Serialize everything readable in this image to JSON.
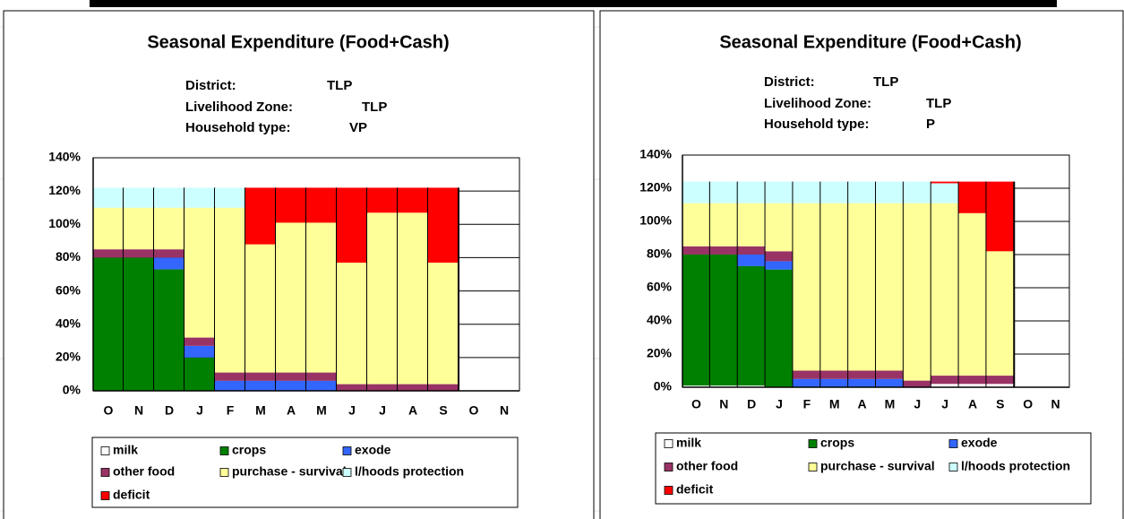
{
  "chart_data": [
    {
      "type": "bar",
      "stacked": true,
      "title": "Seasonal Expenditure (Food+Cash)",
      "info": [
        {
          "label": "District:",
          "value": "TLP"
        },
        {
          "label": "Livelihood Zone:",
          "value": "TLP"
        },
        {
          "label": "Household type:",
          "value": "VP"
        }
      ],
      "categories": [
        "O",
        "N",
        "D",
        "J",
        "F",
        "M",
        "A",
        "M",
        "J",
        "J",
        "A",
        "S",
        "O",
        "N"
      ],
      "ylim": [
        0,
        140
      ],
      "yticks": [
        {
          "value": 0,
          "label": "0%"
        },
        {
          "value": 20,
          "label": "20%"
        },
        {
          "value": 40,
          "label": "40%"
        },
        {
          "value": 60,
          "label": "60%"
        },
        {
          "value": 80,
          "label": "80%"
        },
        {
          "value": 100,
          "label": "100%"
        },
        {
          "value": 120,
          "label": "120%"
        },
        {
          "value": 140,
          "label": "140%"
        }
      ],
      "grid": true,
      "series": [
        {
          "name": "milk",
          "color": "#ffffff",
          "values": [
            0,
            0,
            0,
            0,
            0,
            0,
            0,
            0,
            0,
            0,
            0,
            0,
            null,
            null
          ]
        },
        {
          "name": "crops",
          "color": "#008000",
          "values": [
            80,
            80,
            73,
            20,
            0,
            0,
            0,
            0,
            0,
            0,
            0,
            0,
            null,
            null
          ]
        },
        {
          "name": "exode",
          "color": "#3366ff",
          "values": [
            0,
            0,
            7,
            7,
            6,
            6,
            6,
            6,
            0,
            0,
            0,
            0,
            null,
            null
          ]
        },
        {
          "name": "other food",
          "color": "#993366",
          "values": [
            5,
            5,
            5,
            5,
            5,
            5,
            5,
            5,
            4,
            4,
            4,
            4,
            null,
            null
          ]
        },
        {
          "name": "purchase - survival",
          "color": "#ffff99",
          "values": [
            25,
            25,
            25,
            78,
            99,
            77,
            90,
            90,
            73,
            103,
            103,
            73,
            null,
            null
          ]
        },
        {
          "name": "l/hoods protection",
          "color": "#ccffff",
          "values": [
            12,
            12,
            12,
            12,
            12,
            0,
            0,
            0,
            0,
            0,
            0,
            0,
            null,
            null
          ]
        },
        {
          "name": "deficit",
          "color": "#ff0000",
          "values": [
            0,
            0,
            0,
            0,
            0,
            34,
            21,
            21,
            45,
            15,
            15,
            45,
            null,
            null
          ]
        }
      ]
    },
    {
      "type": "bar",
      "stacked": true,
      "title": "Seasonal Expenditure (Food+Cash)",
      "info": [
        {
          "label": "District:",
          "value": "TLP"
        },
        {
          "label": "Livelihood Zone:",
          "value": "TLP"
        },
        {
          "label": "Household type:",
          "value": "P"
        }
      ],
      "categories": [
        "O",
        "N",
        "D",
        "J",
        "F",
        "M",
        "A",
        "M",
        "J",
        "J",
        "A",
        "S",
        "O",
        "N"
      ],
      "ylim": [
        0,
        140
      ],
      "yticks": [
        {
          "value": 0,
          "label": "0%"
        },
        {
          "value": 20,
          "label": "20%"
        },
        {
          "value": 40,
          "label": "40%"
        },
        {
          "value": 60,
          "label": "60%"
        },
        {
          "value": 80,
          "label": "80%"
        },
        {
          "value": 100,
          "label": "100%"
        },
        {
          "value": 120,
          "label": "120%"
        },
        {
          "value": 140,
          "label": "140%"
        }
      ],
      "grid": true,
      "series": [
        {
          "name": "milk",
          "color": "#ffffff",
          "values": [
            1,
            1,
            1,
            0,
            0,
            0,
            0,
            0,
            0,
            2,
            2,
            2,
            null,
            null
          ]
        },
        {
          "name": "crops",
          "color": "#008000",
          "values": [
            79,
            79,
            72,
            71,
            0,
            0,
            0,
            0,
            0,
            0,
            0,
            0,
            null,
            null
          ]
        },
        {
          "name": "exode",
          "color": "#3366ff",
          "values": [
            0,
            0,
            7,
            5,
            5,
            5,
            5,
            5,
            0,
            0,
            0,
            0,
            null,
            null
          ]
        },
        {
          "name": "other food",
          "color": "#993366",
          "values": [
            5,
            5,
            5,
            6,
            5,
            5,
            5,
            5,
            4,
            5,
            5,
            5,
            null,
            null
          ]
        },
        {
          "name": "purchase - survival",
          "color": "#ffff99",
          "values": [
            26,
            26,
            26,
            29,
            101,
            101,
            101,
            101,
            107,
            104,
            98,
            75,
            null,
            null
          ]
        },
        {
          "name": "l/hoods protection",
          "color": "#ccffff",
          "values": [
            13,
            13,
            13,
            13,
            13,
            13,
            13,
            13,
            13,
            12,
            0,
            0,
            null,
            null
          ]
        },
        {
          "name": "deficit",
          "color": "#ff0000",
          "values": [
            0,
            0,
            0,
            0,
            0,
            0,
            0,
            0,
            0,
            1,
            19,
            42,
            null,
            null
          ]
        }
      ]
    }
  ]
}
